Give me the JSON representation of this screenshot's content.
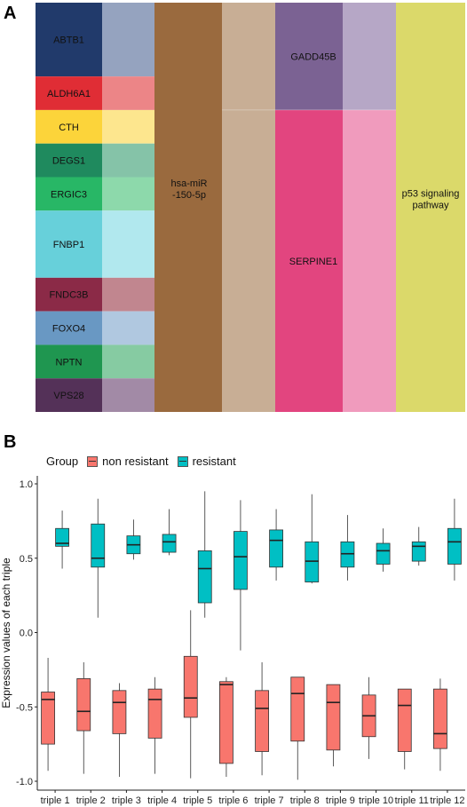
{
  "panel_a": {
    "letter": "A",
    "genes": [
      {
        "label": "ABTB1",
        "units": 2.2,
        "color": "#213a6b",
        "light": "#95a3bf"
      },
      {
        "label": "ALDH6A1",
        "units": 1,
        "color": "#e02d35",
        "light": "#ec8587"
      },
      {
        "label": "CTH",
        "units": 1,
        "color": "#fcd43a",
        "light": "#fde68e"
      },
      {
        "label": "DEGS1",
        "units": 1,
        "color": "#1f8a5e",
        "light": "#85c3a8"
      },
      {
        "label": "ERGIC3",
        "units": 1,
        "color": "#28b766",
        "light": "#8dd9ab"
      },
      {
        "label": "FNBP1",
        "units": 2,
        "color": "#67d0da",
        "light": "#b1e8ee"
      },
      {
        "label": "FNDC3B",
        "units": 1,
        "color": "#8b2a47",
        "light": "#c1868f"
      },
      {
        "label": "FOXO4",
        "units": 1,
        "color": "#6998c3",
        "light": "#b0c8e0"
      },
      {
        "label": "NPTN",
        "units": 1,
        "color": "#1f9650",
        "light": "#86cba2"
      },
      {
        "label": "VPS28",
        "units": 1,
        "color": "#543158",
        "light": "#a28aa6"
      }
    ],
    "mirna": {
      "label": "hsa-miR\n-150-5p",
      "color": "#9a6a3e",
      "light": "#c8ae95"
    },
    "targets": [
      {
        "label": "GADD45B",
        "units": 3.2,
        "color": "#7b6293",
        "light": "#b6a7c6"
      },
      {
        "label": "SERPINE1",
        "units": 9,
        "color": "#e2457f",
        "light": "#f09bbd"
      }
    ],
    "pathway": {
      "label": "p53 signaling\npathway",
      "color": "#dbd96a"
    }
  },
  "panel_b": {
    "letter": "B",
    "legend": {
      "title": "Group",
      "items": [
        {
          "label": "non resistant",
          "color": "#f8766d"
        },
        {
          "label": "resistant",
          "color": "#00bfc4"
        }
      ]
    }
  },
  "chart_data": {
    "type": "box",
    "ylabel": "Expression values of each triple",
    "xlabel": "",
    "ylim": [
      -1.0,
      1.0
    ],
    "yticks": [
      -1.0,
      -0.5,
      0.0,
      0.5,
      1.0
    ],
    "ytick_labels": [
      "-1.0",
      "-0.5",
      "0.0",
      "0.5",
      "1.0"
    ],
    "categories": [
      "triple 1",
      "triple 2",
      "triple 3",
      "triple 4",
      "triple 5",
      "triple 6",
      "triple 7",
      "triple 8",
      "triple 9",
      "triple 10",
      "triple 11",
      "triple 12"
    ],
    "series": [
      {
        "name": "non resistant",
        "color": "#f8766d",
        "boxes": [
          {
            "whislo": -0.93,
            "q1": -0.75,
            "med": -0.45,
            "q3": -0.4,
            "whishi": -0.17
          },
          {
            "whislo": -0.95,
            "q1": -0.66,
            "med": -0.53,
            "q3": -0.31,
            "whishi": -0.2
          },
          {
            "whislo": -0.97,
            "q1": -0.68,
            "med": -0.47,
            "q3": -0.39,
            "whishi": -0.34
          },
          {
            "whislo": -0.95,
            "q1": -0.71,
            "med": -0.45,
            "q3": -0.38,
            "whishi": -0.3
          },
          {
            "whislo": -0.98,
            "q1": -0.57,
            "med": -0.44,
            "q3": -0.16,
            "whishi": 0.15
          },
          {
            "whislo": -0.97,
            "q1": -0.88,
            "med": -0.35,
            "q3": -0.33,
            "whishi": -0.3
          },
          {
            "whislo": -0.96,
            "q1": -0.8,
            "med": -0.51,
            "q3": -0.39,
            "whishi": -0.2
          },
          {
            "whislo": -0.99,
            "q1": -0.73,
            "med": -0.41,
            "q3": -0.3,
            "whishi": -0.3
          },
          {
            "whislo": -0.9,
            "q1": -0.79,
            "med": -0.47,
            "q3": -0.35,
            "whishi": -0.35
          },
          {
            "whislo": -0.85,
            "q1": -0.7,
            "med": -0.56,
            "q3": -0.42,
            "whishi": -0.3
          },
          {
            "whislo": -0.92,
            "q1": -0.8,
            "med": -0.49,
            "q3": -0.38,
            "whishi": -0.38
          },
          {
            "whislo": -0.93,
            "q1": -0.78,
            "med": -0.68,
            "q3": -0.38,
            "whishi": -0.31
          }
        ]
      },
      {
        "name": "resistant",
        "color": "#00bfc4",
        "boxes": [
          {
            "whislo": 0.43,
            "q1": 0.58,
            "med": 0.6,
            "q3": 0.7,
            "whishi": 0.82
          },
          {
            "whislo": 0.1,
            "q1": 0.44,
            "med": 0.5,
            "q3": 0.73,
            "whishi": 0.9
          },
          {
            "whislo": 0.49,
            "q1": 0.53,
            "med": 0.59,
            "q3": 0.65,
            "whishi": 0.76
          },
          {
            "whislo": 0.52,
            "q1": 0.54,
            "med": 0.61,
            "q3": 0.66,
            "whishi": 0.83
          },
          {
            "whislo": 0.1,
            "q1": 0.2,
            "med": 0.43,
            "q3": 0.55,
            "whishi": 0.95
          },
          {
            "whislo": -0.12,
            "q1": 0.29,
            "med": 0.51,
            "q3": 0.68,
            "whishi": 0.89
          },
          {
            "whislo": 0.35,
            "q1": 0.44,
            "med": 0.62,
            "q3": 0.69,
            "whishi": 0.83
          },
          {
            "whislo": 0.33,
            "q1": 0.34,
            "med": 0.48,
            "q3": 0.61,
            "whishi": 0.93
          },
          {
            "whislo": 0.35,
            "q1": 0.44,
            "med": 0.53,
            "q3": 0.61,
            "whishi": 0.79
          },
          {
            "whislo": 0.41,
            "q1": 0.46,
            "med": 0.55,
            "q3": 0.6,
            "whishi": 0.7
          },
          {
            "whislo": 0.45,
            "q1": 0.48,
            "med": 0.58,
            "q3": 0.61,
            "whishi": 0.71
          },
          {
            "whislo": 0.35,
            "q1": 0.46,
            "med": 0.61,
            "q3": 0.7,
            "whishi": 0.9
          }
        ]
      }
    ]
  }
}
